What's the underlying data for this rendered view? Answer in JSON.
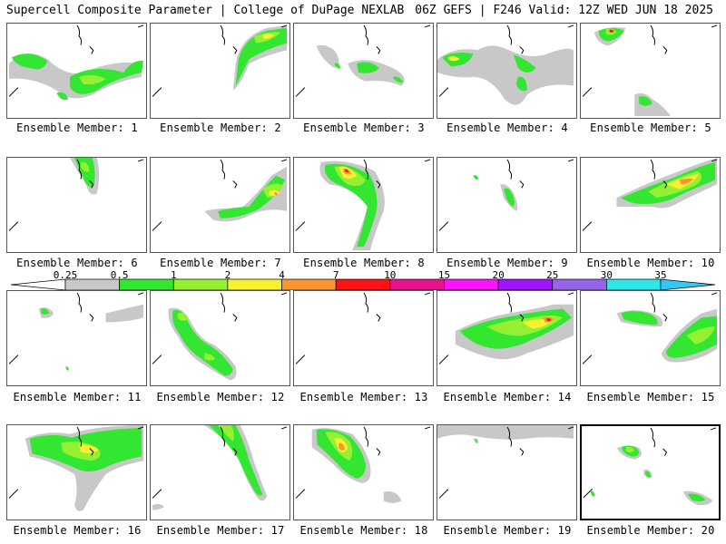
{
  "header": {
    "left_title": "Supercell Composite Parameter | College of DuPage NEXLAB",
    "right_title": "06Z GEFS | F246 Valid: 12Z WED JUN 18 2025"
  },
  "legend": {
    "labels": [
      "0.25",
      "0.5",
      "1",
      "2",
      "4",
      "7",
      "10",
      "15",
      "20",
      "25",
      "30",
      "35"
    ],
    "colors": [
      "#ffffff",
      "#c8c8c8",
      "#32e632",
      "#96f032",
      "#faf032",
      "#fa9632",
      "#fa1414",
      "#e6148c",
      "#fa14fa",
      "#a014fa",
      "#9664e6",
      "#32e6e6",
      "#32c8fa"
    ]
  },
  "members": [
    {
      "label": "Ensemble Member: 1"
    },
    {
      "label": "Ensemble Member: 2"
    },
    {
      "label": "Ensemble Member: 3"
    },
    {
      "label": "Ensemble Member: 4"
    },
    {
      "label": "Ensemble Member: 5"
    },
    {
      "label": "Ensemble Member: 6"
    },
    {
      "label": "Ensemble Member: 7"
    },
    {
      "label": "Ensemble Member: 8"
    },
    {
      "label": "Ensemble Member: 9"
    },
    {
      "label": "Ensemble Member: 10"
    },
    {
      "label": "Ensemble Member: 11"
    },
    {
      "label": "Ensemble Member: 12"
    },
    {
      "label": "Ensemble Member: 13"
    },
    {
      "label": "Ensemble Member: 14"
    },
    {
      "label": "Ensemble Member: 15"
    },
    {
      "label": "Ensemble Member: 16"
    },
    {
      "label": "Ensemble Member: 17"
    },
    {
      "label": "Ensemble Member: 18"
    },
    {
      "label": "Ensemble Member: 19"
    },
    {
      "label": "Ensemble Member: 20"
    }
  ],
  "selected_member": 20
}
